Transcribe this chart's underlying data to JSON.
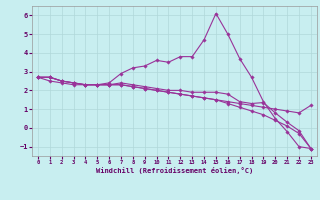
{
  "xlabel": "Windchill (Refroidissement éolien,°C)",
  "bg_color": "#c8eef0",
  "line_color": "#993399",
  "xlim_min": -0.5,
  "xlim_max": 23.5,
  "ylim_min": -1.5,
  "ylim_max": 6.5,
  "yticks": [
    -1,
    0,
    1,
    2,
    3,
    4,
    5,
    6
  ],
  "xticks": [
    0,
    1,
    2,
    3,
    4,
    5,
    6,
    7,
    8,
    9,
    10,
    11,
    12,
    13,
    14,
    15,
    16,
    17,
    18,
    19,
    20,
    21,
    22,
    23
  ],
  "series": [
    [
      2.7,
      2.7,
      2.5,
      2.4,
      2.3,
      2.3,
      2.4,
      2.9,
      3.2,
      3.3,
      3.6,
      3.5,
      3.8,
      3.8,
      4.7,
      6.1,
      5.0,
      3.7,
      2.7,
      1.4,
      0.5,
      -0.2,
      -1.0,
      -1.1
    ],
    [
      2.7,
      2.7,
      2.5,
      2.4,
      2.3,
      2.3,
      2.3,
      2.4,
      2.3,
      2.2,
      2.1,
      2.0,
      2.0,
      1.9,
      1.9,
      1.9,
      1.8,
      1.4,
      1.3,
      1.35,
      0.8,
      0.3,
      -0.15,
      -1.1
    ],
    [
      2.7,
      2.7,
      2.5,
      2.4,
      2.3,
      2.3,
      2.3,
      2.3,
      2.2,
      2.1,
      2.0,
      1.9,
      1.8,
      1.7,
      1.6,
      1.5,
      1.3,
      1.1,
      0.9,
      0.7,
      0.4,
      0.1,
      -0.3,
      -1.1
    ],
    [
      2.7,
      2.5,
      2.4,
      2.3,
      2.3,
      2.3,
      2.3,
      2.3,
      2.2,
      2.1,
      2.0,
      1.9,
      1.8,
      1.7,
      1.6,
      1.5,
      1.4,
      1.3,
      1.2,
      1.1,
      1.0,
      0.9,
      0.8,
      1.2
    ]
  ],
  "grid_color": "#b0d8da",
  "tick_color": "#660066",
  "label_color": "#660066",
  "spine_color": "#999999"
}
